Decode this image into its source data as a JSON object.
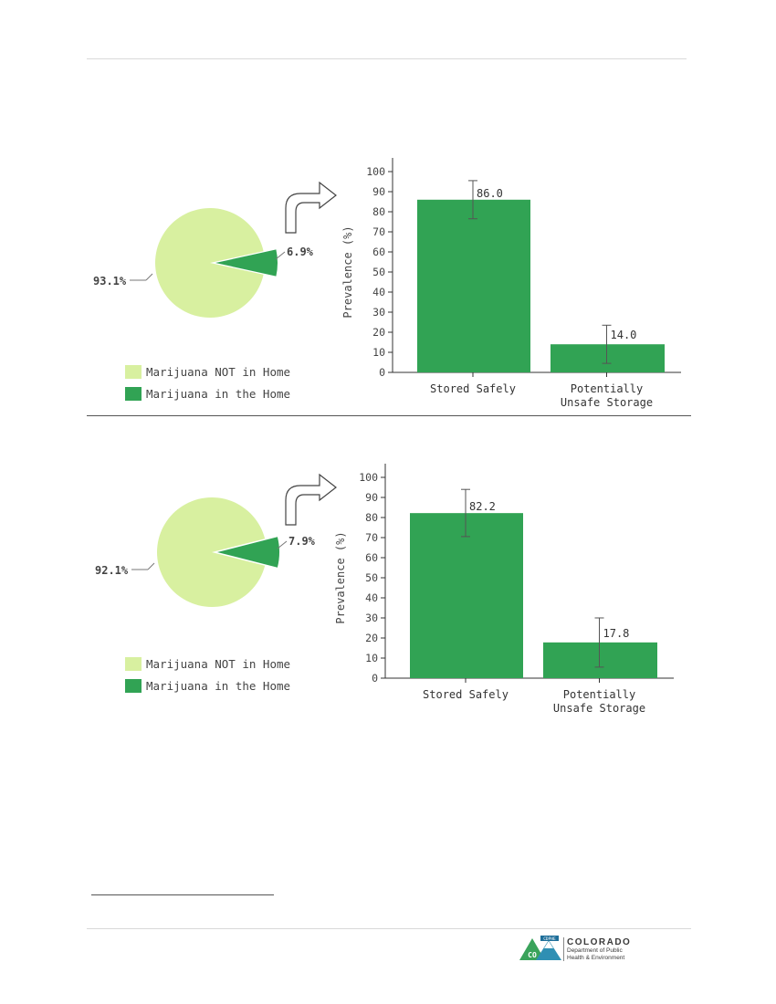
{
  "chart_data": [
    {
      "type": "bar",
      "pie": {
        "slices": [
          {
            "label": "Marijuana NOT in Home",
            "value": 93.1,
            "display": "93.1%",
            "color": "#d8f0a0"
          },
          {
            "label": "Marijuana in the Home",
            "value": 6.9,
            "display": "6.9%",
            "color": "#31a354"
          }
        ]
      },
      "categories": [
        "Stored Safely",
        "Potentially\nUnsafe Storage"
      ],
      "series": [
        {
          "values": [
            86.0,
            14.0
          ],
          "value_labels": [
            "86.0",
            "14.0"
          ],
          "error_low": [
            76.5,
            4.5
          ],
          "error_high": [
            95.5,
            23.5
          ]
        }
      ],
      "ylabel": "Prevalence (%)",
      "ylim": [
        0,
        100
      ],
      "yticks": [
        0,
        10,
        20,
        30,
        40,
        50,
        60,
        70,
        80,
        90,
        100
      ],
      "bar_color": "#31a354"
    },
    {
      "type": "bar",
      "pie": {
        "slices": [
          {
            "label": "Marijuana NOT in Home",
            "value": 92.1,
            "display": "92.1%",
            "color": "#d8f0a0"
          },
          {
            "label": "Marijuana in the Home",
            "value": 7.9,
            "display": "7.9%",
            "color": "#31a354"
          }
        ]
      },
      "categories": [
        "Stored Safely",
        "Potentially\nUnsafe Storage"
      ],
      "series": [
        {
          "values": [
            82.2,
            17.8
          ],
          "value_labels": [
            "82.2",
            "17.8"
          ],
          "error_low": [
            70.5,
            5.5
          ],
          "error_high": [
            94.0,
            30.0
          ]
        }
      ],
      "ylabel": "Prevalence (%)",
      "ylim": [
        0,
        100
      ],
      "yticks": [
        0,
        10,
        20,
        30,
        40,
        50,
        60,
        70,
        80,
        90,
        100
      ],
      "bar_color": "#31a354"
    }
  ],
  "footer": {
    "logo_badge": "CDPHE",
    "logo_initials": "CO",
    "org_name": "COLORADO",
    "org_sub1": "Department of Public",
    "org_sub2": "Health & Environment"
  }
}
